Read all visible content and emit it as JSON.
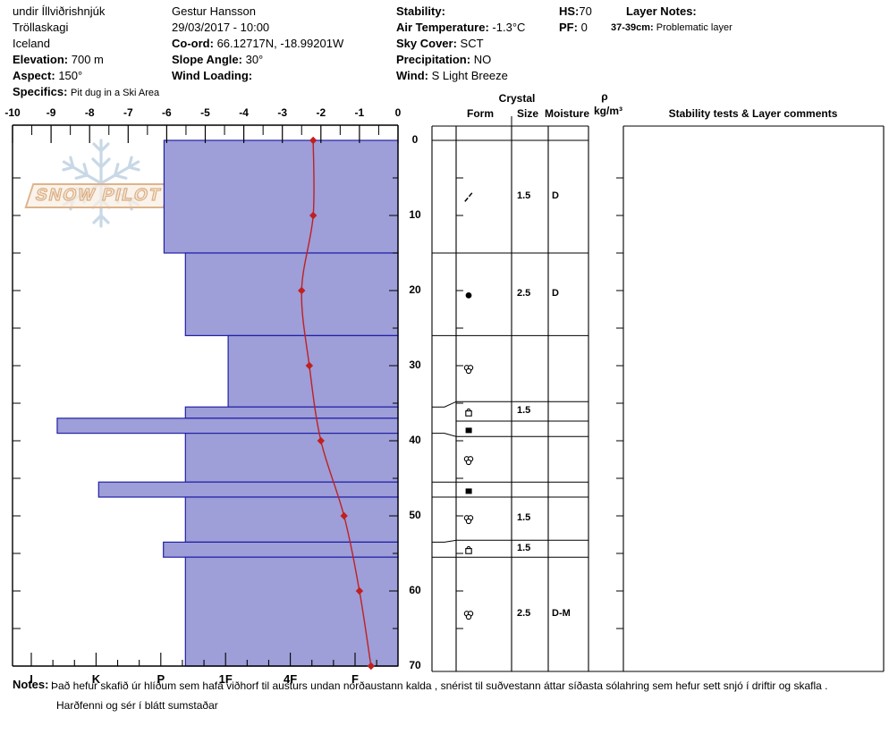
{
  "header": {
    "site": "undir Íllviðrishnjúk",
    "region": "Tröllaskagi",
    "country": "Iceland",
    "elevation_label": "Elevation:",
    "elevation": "700 m",
    "aspect_label": "Aspect:",
    "aspect": "150°",
    "specifics_label": "Specifics:",
    "specifics": "Pit dug in a Ski Area",
    "observer": "Gestur Hansson",
    "datetime": "29/03/2017 - 10:00",
    "coord_label": "Co-ord:",
    "coord": "66.12717N, -18.99201W",
    "slope_angle_label": "Slope Angle:",
    "slope_angle": "30°",
    "wind_loading_label": "Wind Loading:",
    "wind_loading": "",
    "stability_label": "Stability:",
    "stability": "",
    "air_temp_label": "Air Temperature:",
    "air_temp": "-1.3°C",
    "sky_label": "Sky Cover:",
    "sky": "SCT",
    "precip_label": "Precipitation:",
    "precip": "NO",
    "wind_label": "Wind:",
    "wind": "S Light Breeze",
    "hs_label": "HS:",
    "hs": "70",
    "pf_label": "PF:",
    "pf": "0",
    "layer_notes_label": "Layer Notes:",
    "layer_note_range": "37-39cm:",
    "layer_note_text": "Problematic layer"
  },
  "watermark": {
    "text": "SNOW PILOT"
  },
  "table": {
    "crystal_header": "Crystal",
    "form_header": "Form",
    "size_header": "Size",
    "moisture_header": "Moisture",
    "rho_header": "ρ",
    "rho_unit": "kg/m³",
    "stability_header": "Stability tests & Layer comments",
    "density_values": [],
    "stability_tests": []
  },
  "chart_data": {
    "type": "bar+line (snow pit hardness profile with temperature curve)",
    "temperature_axis": {
      "position": "top",
      "unit": "°C",
      "range": [
        -10,
        0
      ],
      "ticks": [
        -10,
        -9,
        -8,
        -7,
        -6,
        -5,
        -4,
        -3,
        -2,
        -1,
        0
      ]
    },
    "depth_axis": {
      "position": "right",
      "unit": "cm",
      "range": [
        0,
        70
      ],
      "ticks": [
        0,
        10,
        20,
        30,
        40,
        50,
        60,
        70
      ]
    },
    "hardness_axis": {
      "position": "bottom",
      "ticks": [
        "I",
        "K",
        "P",
        "1F",
        "4F",
        "F"
      ],
      "note": "hand hardness, I (hardest) at left, F (softest) at right"
    },
    "temperature_profile": {
      "depths_cm": [
        0,
        10,
        20,
        30,
        40,
        50,
        60,
        70
      ],
      "temps_c": [
        -2.2,
        -2.2,
        -2.5,
        -2.3,
        -2.0,
        -1.4,
        -1.0,
        -0.7
      ],
      "line_color": "#c02020",
      "marker": "diamond"
    },
    "layers": [
      {
        "top_cm": 0,
        "bottom_cm": 15,
        "hardness": "P",
        "hardness_num": 3.95,
        "form_code": "DF",
        "symbol": "double-slash",
        "size_mm": "1.5",
        "moisture": "D"
      },
      {
        "top_cm": 15,
        "bottom_cm": 26,
        "hardness": "P-",
        "hardness_num": 3.62,
        "form_code": "RG",
        "symbol": "filled-circle",
        "size_mm": "2.5",
        "moisture": "D"
      },
      {
        "top_cm": 26,
        "bottom_cm": 35.5,
        "hardness": "1F",
        "hardness_num": 2.96,
        "form_code": "MFcl",
        "symbol": "circle-cluster",
        "size_mm": "",
        "moisture": ""
      },
      {
        "top_cm": 35.5,
        "bottom_cm": 37,
        "hardness": "P-",
        "hardness_num": 3.62,
        "form_code": "FCxr",
        "symbol": "dome-square",
        "size_mm": "1.5",
        "moisture": ""
      },
      {
        "top_cm": 37,
        "bottom_cm": 39,
        "hardness": "K-I",
        "hardness_num": 5.6,
        "form_code": "IF",
        "symbol": "filled-square",
        "size_mm": "",
        "moisture": ""
      },
      {
        "top_cm": 39,
        "bottom_cm": 45.5,
        "hardness": "P-",
        "hardness_num": 3.62,
        "form_code": "MFcl",
        "symbol": "circle-cluster",
        "size_mm": "",
        "moisture": ""
      },
      {
        "top_cm": 45.5,
        "bottom_cm": 47.5,
        "hardness": "K",
        "hardness_num": 4.96,
        "form_code": "IF",
        "symbol": "filled-square",
        "size_mm": "",
        "moisture": ""
      },
      {
        "top_cm": 47.5,
        "bottom_cm": 53.5,
        "hardness": "P-",
        "hardness_num": 3.62,
        "form_code": "MFcl",
        "symbol": "circle-cluster",
        "size_mm": "1.5",
        "moisture": ""
      },
      {
        "top_cm": 53.5,
        "bottom_cm": 55.5,
        "hardness": "P",
        "hardness_num": 3.96,
        "form_code": "FCxr",
        "symbol": "dome-square",
        "size_mm": "1.5",
        "moisture": ""
      },
      {
        "top_cm": 55.5,
        "bottom_cm": 70,
        "hardness": "P-",
        "hardness_num": 3.62,
        "form_code": "MFcl",
        "symbol": "circle-cluster",
        "size_mm": "2.5",
        "moisture": "D-M"
      }
    ],
    "bar_fill": "#9e9ed8",
    "bar_border": "#2020a8",
    "title": "",
    "grid": "off",
    "legend": "none"
  },
  "notes": {
    "label": "Notes:",
    "line1": "Það hefur skafið úr hlíðum sem hafa viðhorf til austurs undan norðaustann kalda , snérist til suðvestann áttar síðasta sólahring sem hefur sett snjó í driftir og skafla .",
    "line2": "Harðfenni og sér í blátt sumstaðar"
  }
}
